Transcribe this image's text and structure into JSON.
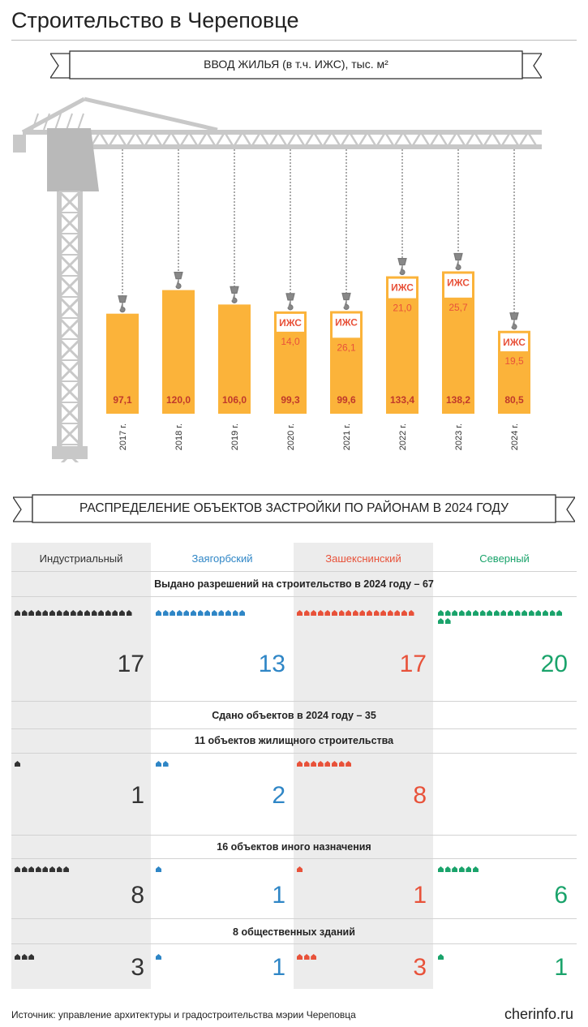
{
  "page_title": "Строительство в Череповце",
  "housing_banner": "ВВОД ЖИЛЬЯ (в т.ч. ИЖС), тыс. м²",
  "izhs_label": "ИЖС",
  "colors": {
    "bar": "#fbb33a",
    "izhs": "#e8523a",
    "crane": "#c8c8c8",
    "value": "#c0392b",
    "dark": "#333333",
    "blue": "#2f86c6",
    "red": "#e8523a",
    "green": "#1aa36b"
  },
  "chart_data": {
    "type": "bar",
    "categories": [
      "2017 г.",
      "2018 г.",
      "2019 г.",
      "2020 г.",
      "2021 г.",
      "2022 г.",
      "2023 г.",
      "2024 г."
    ],
    "series": [
      {
        "values": [
          "97,1",
          "120,0",
          "106,0",
          "99,3",
          "99,6",
          "133,4",
          "138,2",
          "80,5"
        ]
      },
      {
        "name": "ИЖС",
        "values": [
          null,
          null,
          null,
          "14,0",
          "26,1",
          "21,0",
          "25,7",
          "19,5"
        ]
      }
    ]
  },
  "districts_banner": "РАСПРЕДЕЛЕНИЕ ОБЪЕКТОВ ЗАСТРОЙКИ ПО РАЙОНАМ В 2024 ГОДУ",
  "districts": [
    {
      "name": "Индустриальный",
      "color": "#333333"
    },
    {
      "name": "Заягорбский",
      "color": "#2f86c6"
    },
    {
      "name": "Зашекснинский",
      "color": "#e8523a"
    },
    {
      "name": "Северный",
      "color": "#1aa36b"
    }
  ],
  "sections": {
    "permits": {
      "title": "Выдано разрешений на строительство в 2024 году – 67",
      "values": [
        17,
        13,
        17,
        20
      ]
    },
    "completed": {
      "title": "Сдано объектов в 2024 году – 35"
    },
    "housing": {
      "title": "11 объектов жилищного строительства",
      "values": [
        1,
        2,
        8,
        null
      ]
    },
    "other": {
      "title": "16 объектов иного назначения",
      "values": [
        8,
        1,
        1,
        6
      ]
    },
    "public": {
      "title": "8 общественных зданий",
      "values": [
        3,
        1,
        3,
        1
      ]
    }
  },
  "footer": {
    "source": "Источник: управление архитектуры и градостроительства мэрии Череповца",
    "site": "cherinfo.ru"
  }
}
